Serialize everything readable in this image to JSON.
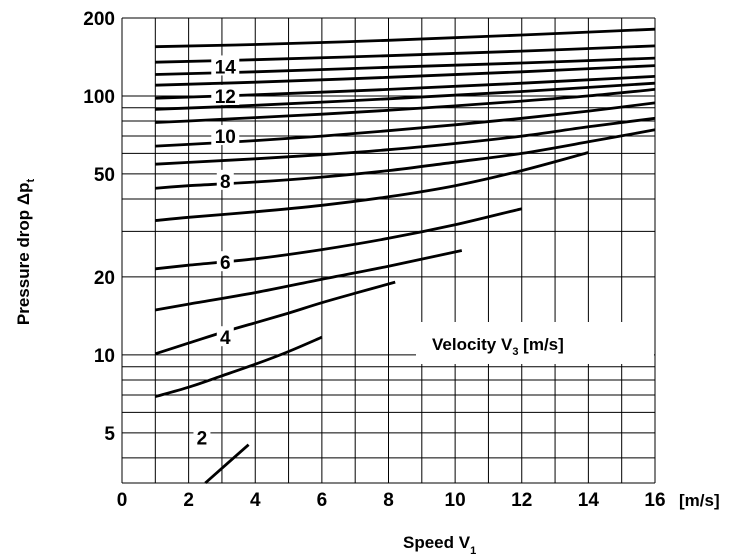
{
  "chart_data": {
    "type": "line",
    "title": "",
    "xlabel": "Speed V",
    "xlabel_sub": "1",
    "ylabel": "Pressure drop Δp",
    "ylabel_sub": "t",
    "x_unit": "[m/s]",
    "xlim": [
      0,
      16
    ],
    "ylim": [
      3.2,
      200
    ],
    "yscale": "log",
    "grid": true,
    "xticks": [
      "0",
      "2",
      "4",
      "6",
      "8",
      "10",
      "12",
      "14",
      "16"
    ],
    "yticks": [
      {
        "value": 5,
        "label": "5"
      },
      {
        "value": 10,
        "label": "10"
      },
      {
        "value": 20,
        "label": "20"
      },
      {
        "value": 50,
        "label": "50"
      },
      {
        "value": 100,
        "label": "100"
      },
      {
        "value": 200,
        "label": "200"
      }
    ],
    "legend": {
      "text": "Velocity V",
      "sub": "3",
      "suffix": " [m/s]",
      "placement": "right"
    },
    "curve_labels": [
      {
        "text": "2",
        "x": 2.4,
        "y": 4.8
      },
      {
        "text": "4",
        "x": 3.1,
        "y": 11.7
      },
      {
        "text": "6",
        "x": 3.1,
        "y": 22.8
      },
      {
        "text": "8",
        "x": 3.1,
        "y": 47
      },
      {
        "text": "10",
        "x": 3.1,
        "y": 70
      },
      {
        "text": "12",
        "x": 3.1,
        "y": 100
      },
      {
        "text": "14",
        "x": 3.1,
        "y": 130
      }
    ],
    "series": [
      {
        "points": [
          [
            2.5,
            3.2
          ],
          [
            3.8,
            4.5
          ]
        ]
      },
      {
        "points": [
          [
            1,
            6.9
          ],
          [
            2,
            7.5
          ],
          [
            3,
            8.3
          ],
          [
            4,
            9.2
          ],
          [
            5,
            10.3
          ],
          [
            6,
            11.7
          ]
        ]
      },
      {
        "points": [
          [
            1,
            10.1
          ],
          [
            2,
            11.1
          ],
          [
            3,
            12.2
          ],
          [
            4,
            13.3
          ],
          [
            5,
            14.5
          ],
          [
            6,
            15.9
          ],
          [
            7,
            17.3
          ],
          [
            8.2,
            19.1
          ]
        ]
      },
      {
        "points": [
          [
            1,
            14.9
          ],
          [
            2,
            15.7
          ],
          [
            4,
            17.4
          ],
          [
            6,
            19.6
          ],
          [
            8,
            22.0
          ],
          [
            10.2,
            25.3
          ]
        ]
      },
      {
        "points": [
          [
            1,
            21.5
          ],
          [
            2,
            22.2
          ],
          [
            4,
            23.5
          ],
          [
            6,
            25.5
          ],
          [
            8,
            28.2
          ],
          [
            10,
            31.8
          ],
          [
            12,
            36.7
          ]
        ]
      },
      {
        "points": [
          [
            1,
            33
          ],
          [
            2,
            34
          ],
          [
            4,
            35.7
          ],
          [
            6,
            37.8
          ],
          [
            8,
            40.8
          ],
          [
            10,
            45
          ],
          [
            12,
            51.5
          ],
          [
            14,
            60.5
          ]
        ]
      },
      {
        "points": [
          [
            1,
            44
          ],
          [
            2,
            45
          ],
          [
            4,
            46.5
          ],
          [
            6,
            48.6
          ],
          [
            8,
            51.5
          ],
          [
            10,
            55.5
          ],
          [
            12,
            60
          ],
          [
            14,
            66.5
          ],
          [
            16,
            74
          ]
        ]
      },
      {
        "points": [
          [
            1,
            54.5
          ],
          [
            2,
            55.4
          ],
          [
            4,
            57.2
          ],
          [
            6,
            59.3
          ],
          [
            8,
            62
          ],
          [
            10,
            65.5
          ],
          [
            12,
            70
          ],
          [
            14,
            76
          ],
          [
            16,
            82
          ]
        ]
      },
      {
        "points": [
          [
            1,
            64
          ],
          [
            2,
            65
          ],
          [
            4,
            67.2
          ],
          [
            6,
            70
          ],
          [
            8,
            73.4
          ],
          [
            10,
            77.4
          ],
          [
            12,
            82
          ],
          [
            14,
            87.4
          ],
          [
            16,
            94
          ]
        ]
      },
      {
        "points": [
          [
            1,
            79
          ],
          [
            2,
            80
          ],
          [
            4,
            82.5
          ],
          [
            6,
            85
          ],
          [
            8,
            88
          ],
          [
            10,
            91.5
          ],
          [
            12,
            95.5
          ],
          [
            14,
            100
          ],
          [
            16,
            106
          ]
        ]
      },
      {
        "points": [
          [
            1,
            88.8
          ],
          [
            4,
            92
          ],
          [
            8,
            97.5
          ],
          [
            12,
            104
          ],
          [
            16,
            112
          ]
        ]
      },
      {
        "points": [
          [
            1,
            98
          ],
          [
            4,
            101
          ],
          [
            8,
            106
          ],
          [
            12,
            112
          ],
          [
            16,
            119
          ]
        ]
      },
      {
        "points": [
          [
            1,
            110
          ],
          [
            4,
            113
          ],
          [
            8,
            118
          ],
          [
            12,
            124
          ],
          [
            16,
            131
          ]
        ]
      },
      {
        "points": [
          [
            1,
            121
          ],
          [
            4,
            124
          ],
          [
            8,
            129
          ],
          [
            12,
            134
          ],
          [
            16,
            140
          ]
        ]
      },
      {
        "points": [
          [
            1,
            135
          ],
          [
            4,
            138
          ],
          [
            8,
            143
          ],
          [
            12,
            149
          ],
          [
            16,
            156
          ]
        ]
      },
      {
        "points": [
          [
            1,
            155
          ],
          [
            4,
            158
          ],
          [
            8,
            164
          ],
          [
            12,
            172
          ],
          [
            16,
            181
          ]
        ]
      }
    ]
  }
}
